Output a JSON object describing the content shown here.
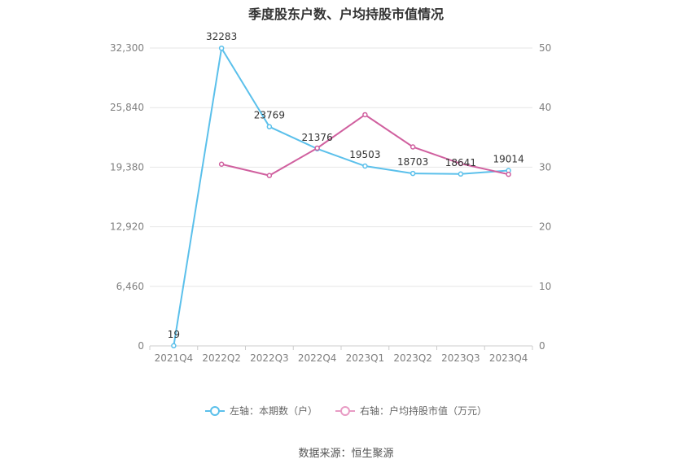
{
  "chart_data": {
    "type": "line",
    "title": "季度股东户数、户均持股市值情况",
    "categories": [
      "2021Q4",
      "2022Q2",
      "2022Q3",
      "2022Q4",
      "2023Q1",
      "2023Q2",
      "2023Q3",
      "2023Q4"
    ],
    "left_axis": {
      "ticks": [
        "0",
        "6,460",
        "12,920",
        "19,380",
        "25,840",
        "32,300"
      ],
      "range": [
        0,
        32300
      ]
    },
    "right_axis": {
      "ticks": [
        "0",
        "10",
        "20",
        "30",
        "40",
        "50"
      ],
      "range": [
        0,
        50
      ]
    },
    "grid": true,
    "legend_position": "bottom",
    "series": [
      {
        "name": "左轴：本期数（户）",
        "axis": "left",
        "color": "#5bc0eb",
        "values": [
          19,
          32283,
          23769,
          21376,
          19503,
          18703,
          18641,
          19014
        ],
        "labels": [
          "19",
          "32283",
          "23769",
          "21376",
          "19503",
          "18703",
          "18641",
          "19014"
        ]
      },
      {
        "name": "右轴：户均持股市值（万元）",
        "axis": "right",
        "color": "#d0609f",
        "legend_color": "#e89bc4",
        "values": [
          null,
          30.5,
          28.6,
          33.2,
          38.8,
          33.4,
          30.6,
          28.8
        ]
      }
    ],
    "source": "数据来源：恒生聚源"
  }
}
